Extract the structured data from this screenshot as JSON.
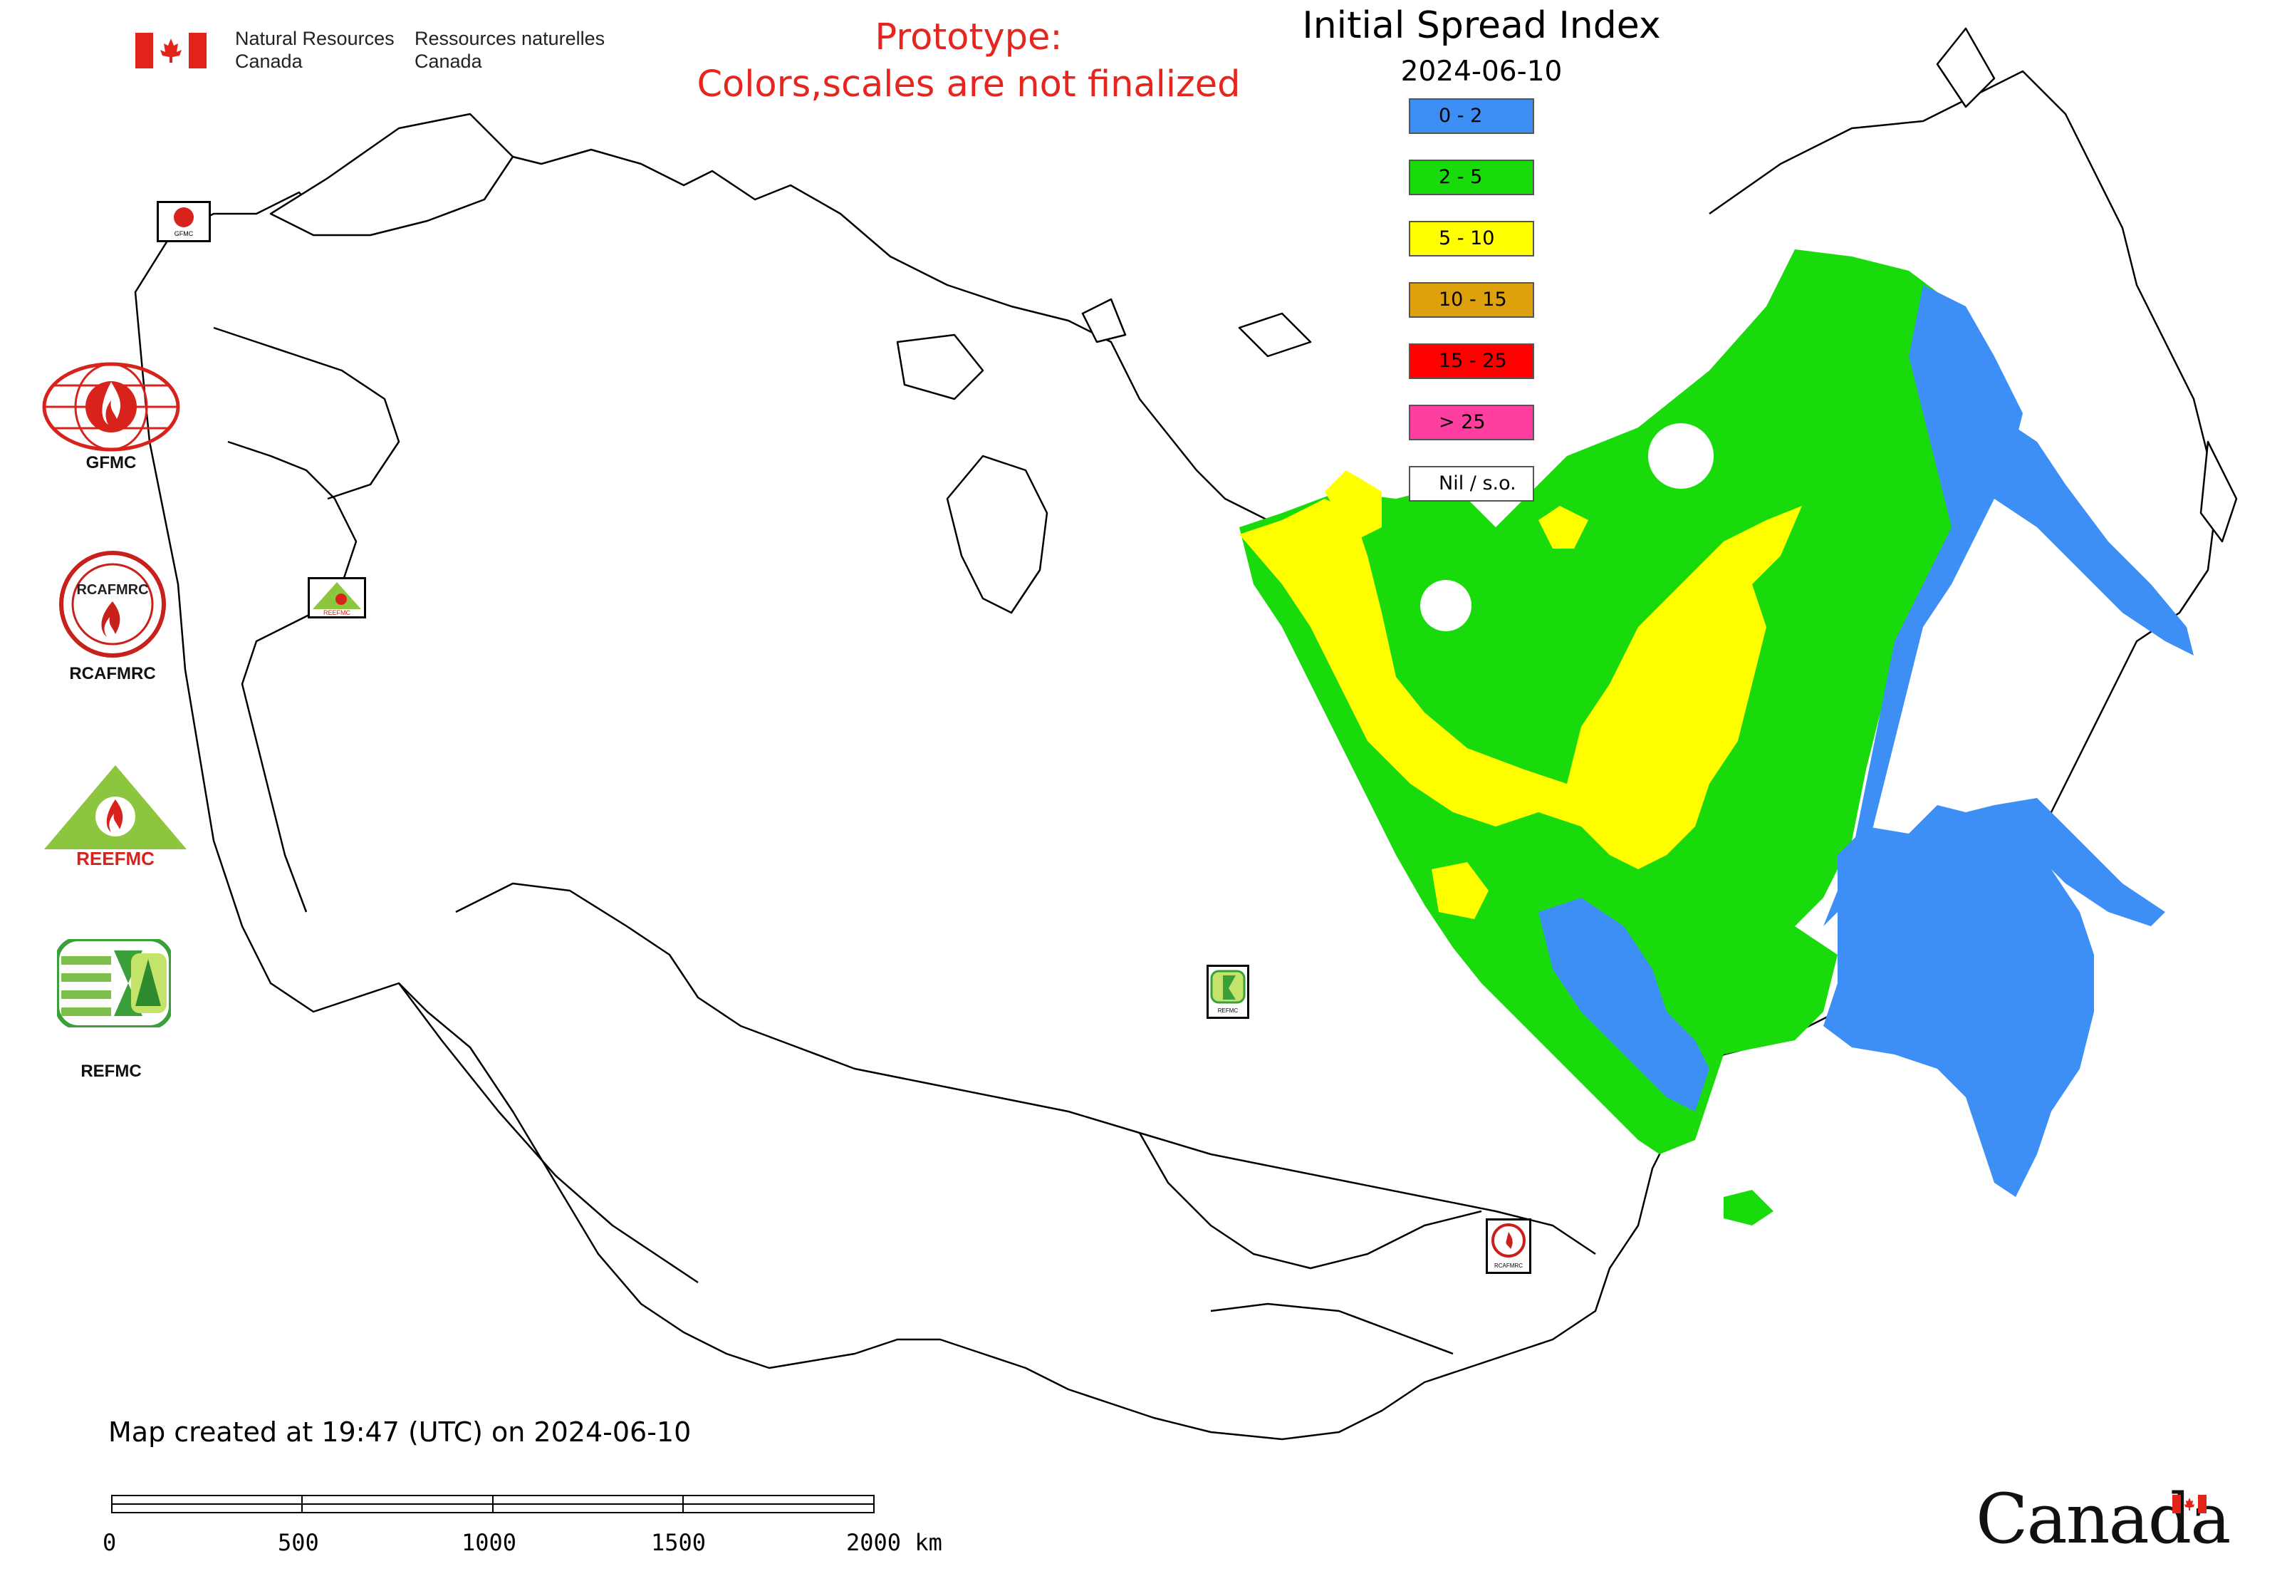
{
  "header": {
    "department_en_line1": "Natural Resources",
    "department_en_line2": "Canada",
    "department_fr_line1": "Ressources naturelles",
    "department_fr_line2": "Canada",
    "prototype_line1": "Prototype:",
    "prototype_line2": "Colors,scales are not finalized"
  },
  "map": {
    "title": "Initial Spread Index",
    "date": "2024-06-10",
    "legend": [
      {
        "label": "0 - 2",
        "color": "#3d8ef5"
      },
      {
        "label": "2 - 5",
        "color": "#19db0c"
      },
      {
        "label": "5 - 10",
        "color": "#ffff00"
      },
      {
        "label": "10 - 15",
        "color": "#dea10b"
      },
      {
        "label": "15 - 25",
        "color": "#ff0000"
      },
      {
        "label": "> 25",
        "color": "#ff3f9f"
      },
      {
        "label": "Nil / s.o.",
        "color": "#ffffff"
      }
    ]
  },
  "logos": [
    {
      "caption": "GFMC",
      "icon": "gfmc-logo"
    },
    {
      "caption": "RCAFMRC",
      "icon": "rcafmrc-logo"
    },
    {
      "caption": "",
      "icon": "reefmc-logo",
      "logo_text": "REEFMC"
    },
    {
      "caption": "REFMC",
      "icon": "refmc-logo"
    }
  ],
  "mini_labels": {
    "gfmc": "GFMC",
    "reefmc": "REEFMC",
    "refmc": "REFMC",
    "rcafmrc": "RCAFMRC",
    "rcafmrc_logo": "RCAFMRC"
  },
  "footer": {
    "created": "Map created at 19:47 (UTC) on 2024-06-10",
    "scale_ticks": [
      "0",
      "500",
      "1000",
      "1500",
      "2000 km"
    ],
    "wordmark": "Canada"
  }
}
